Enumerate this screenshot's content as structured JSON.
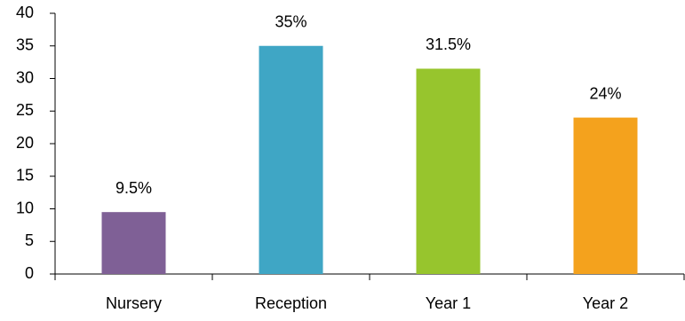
{
  "chart_data": {
    "type": "bar",
    "categories": [
      "Nursery",
      "Reception",
      "Year 1",
      "Year 2"
    ],
    "values": [
      9.5,
      35,
      31.5,
      24
    ],
    "value_labels": [
      "9.5%",
      "35%",
      "31.5%",
      "24%"
    ],
    "colors": [
      "#7f6096",
      "#3fa6c5",
      "#97c52d",
      "#f4a21d"
    ],
    "ylim": [
      0,
      40
    ],
    "yticks": [
      0,
      5,
      10,
      15,
      20,
      25,
      30,
      35,
      40
    ],
    "grid": false
  }
}
